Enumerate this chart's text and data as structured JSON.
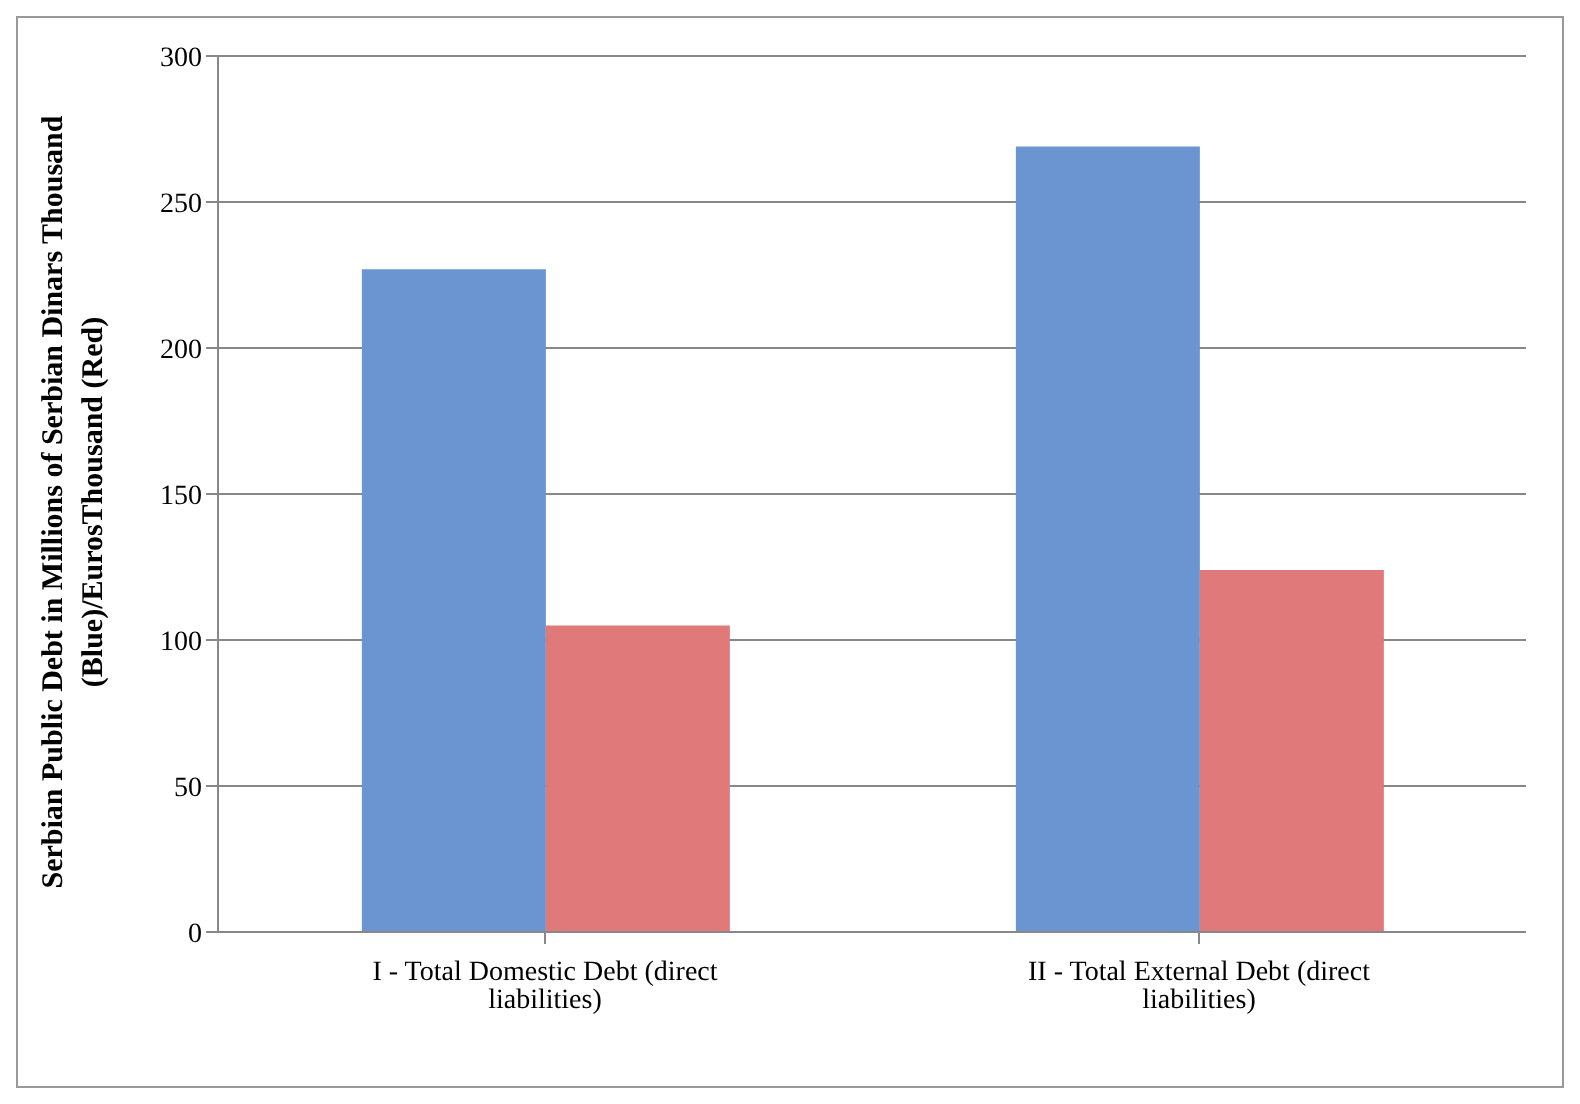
{
  "chart_data": {
    "type": "bar",
    "ylabel": "Serbian Public Debt in  Millions of Serbian Dinars Thousand (Blue)/EurosThousand  (Red)",
    "categories": [
      "I - Total Domestic Debt (direct liabilities)",
      "II - Total External Debt (direct liabilities)"
    ],
    "series": [
      {
        "color": "#6a95d0",
        "values": [
          227,
          269
        ]
      },
      {
        "color": "#e07a7a",
        "values": [
          105,
          124
        ]
      }
    ],
    "ylim": [
      0,
      300
    ],
    "yticks": [
      0,
      50,
      100,
      150,
      200,
      250,
      300
    ],
    "grid": "y",
    "legend": false
  }
}
